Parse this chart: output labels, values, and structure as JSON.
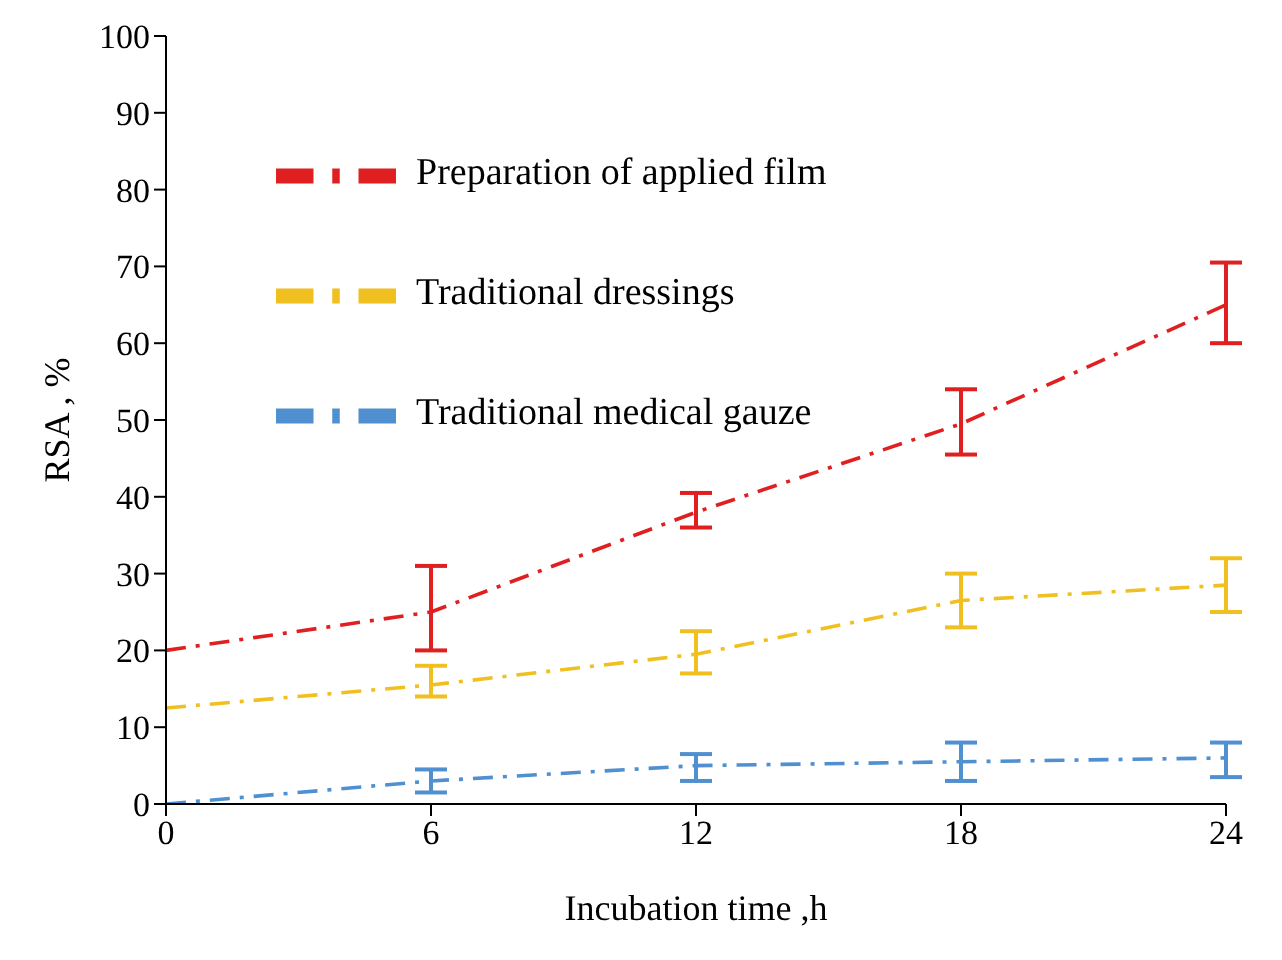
{
  "chart_data": {
    "type": "line",
    "xlabel": "Incubation time ,h",
    "ylabel": "RSA , %",
    "x": [
      0,
      6,
      12,
      18,
      24
    ],
    "xlim": [
      0,
      24
    ],
    "xticks": [
      0,
      6,
      12,
      18,
      24
    ],
    "ylim": [
      0,
      100
    ],
    "yticks": [
      0,
      10,
      20,
      30,
      40,
      50,
      60,
      70,
      80,
      90,
      100
    ],
    "grid": false,
    "legend": "top left",
    "marker": "none",
    "line_style": "dashed",
    "series": [
      {
        "name": "Preparation of applied film",
        "color": "#e02020",
        "values": [
          20,
          25,
          38,
          49.5,
          65
        ],
        "errors": [
          null,
          [
            20,
            31
          ],
          [
            36,
            40.5
          ],
          [
            45.5,
            54
          ],
          [
            60,
            70.5
          ]
        ]
      },
      {
        "name": "Traditional dressings",
        "color": "#f0c020",
        "values": [
          12.5,
          15.5,
          19.5,
          26.5,
          28.5
        ],
        "errors": [
          null,
          [
            14,
            18
          ],
          [
            17,
            22.5
          ],
          [
            23,
            30
          ],
          [
            25,
            32
          ]
        ]
      },
      {
        "name": "Traditional medical gauze",
        "color": "#5090d0",
        "values": [
          0,
          3,
          5,
          5.5,
          6
        ],
        "errors": [
          null,
          [
            1.5,
            4.5
          ],
          [
            3,
            6.5
          ],
          [
            3,
            8
          ],
          [
            3.5,
            8
          ]
        ]
      }
    ]
  }
}
